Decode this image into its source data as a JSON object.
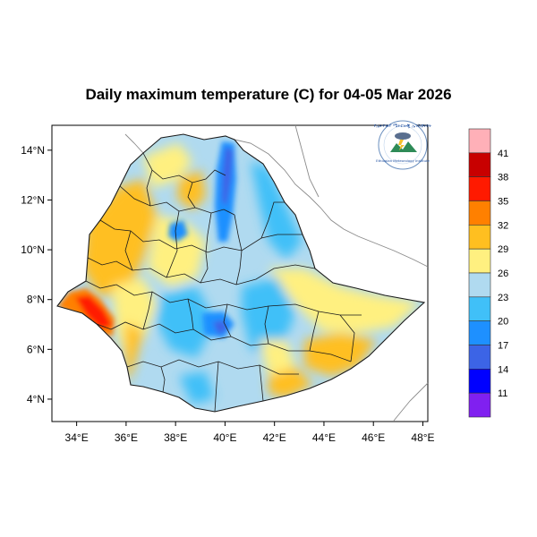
{
  "title": "Daily maximum temperature (C) for 04-05 Mar 2026",
  "map": {
    "lon_range": [
      33.0,
      48.2
    ],
    "lat_range": [
      3.1,
      15.0
    ],
    "x_ticks": [
      {
        "value": 34,
        "label": "34°E"
      },
      {
        "value": 36,
        "label": "36°E"
      },
      {
        "value": 38,
        "label": "38°E"
      },
      {
        "value": 40,
        "label": "40°E"
      },
      {
        "value": 42,
        "label": "42°E"
      },
      {
        "value": 44,
        "label": "44°E"
      },
      {
        "value": 46,
        "label": "46°E"
      },
      {
        "value": 48,
        "label": "48°E"
      }
    ],
    "y_ticks": [
      {
        "value": 4,
        "label": "4°N"
      },
      {
        "value": 6,
        "label": "6°N"
      },
      {
        "value": 8,
        "label": "8°N"
      },
      {
        "value": 10,
        "label": "10°N"
      },
      {
        "value": 12,
        "label": "12°N"
      },
      {
        "value": 14,
        "label": "14°N"
      }
    ]
  },
  "colorbar": {
    "labels": [
      "41",
      "38",
      "35",
      "32",
      "29",
      "26",
      "23",
      "20",
      "17",
      "14",
      "11"
    ],
    "colors": [
      "#ffb0b8",
      "#c80000",
      "#ff1a00",
      "#ff8000",
      "#ffbf20",
      "#fff080",
      "#b0daf0",
      "#40c0f8",
      "#1e90ff",
      "#3c64e6",
      "#0000ff",
      "#8020f0"
    ]
  },
  "logo": {
    "text_am": "የኢትዮጵያ ሜትሮሎጂ ኢንስቲትዩት",
    "text_en": "Ethiopian Meteorology Institute"
  }
}
